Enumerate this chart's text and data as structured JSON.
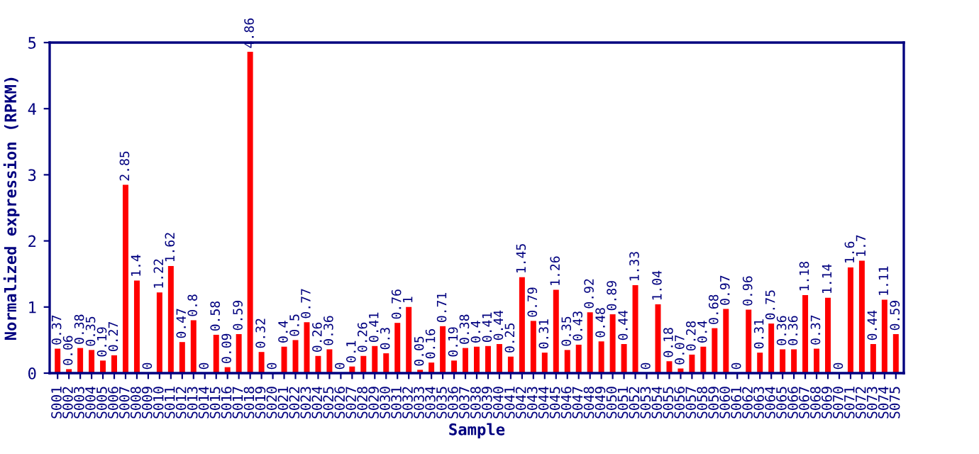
{
  "chart_data": {
    "type": "bar",
    "xlabel": "Sample",
    "ylabel": "Normalized expression (RPKM)",
    "categories": [
      "S001",
      "S002",
      "S003",
      "S004",
      "S005",
      "S006",
      "S007",
      "S008",
      "S009",
      "S010",
      "S011",
      "S012",
      "S013",
      "S014",
      "S015",
      "S016",
      "S017",
      "S018",
      "S019",
      "S020",
      "S021",
      "S022",
      "S023",
      "S024",
      "S025",
      "S026",
      "S027",
      "S028",
      "S029",
      "S030",
      "S031",
      "S032",
      "S033",
      "S034",
      "S035",
      "S036",
      "S037",
      "S038",
      "S039",
      "S040",
      "S041",
      "S042",
      "S043",
      "S044",
      "S045",
      "S046",
      "S047",
      "S048",
      "S049",
      "S050",
      "S051",
      "S052",
      "S053",
      "S054",
      "S055",
      "S056",
      "S057",
      "S058",
      "S059",
      "S060",
      "S061",
      "S062",
      "S063",
      "S064",
      "S065",
      "S066",
      "S067",
      "S068",
      "S069",
      "S070",
      "S071",
      "S072",
      "S073",
      "S074",
      "S075"
    ],
    "values": [
      0.37,
      0.06,
      0.38,
      0.35,
      0.19,
      0.27,
      2.85,
      1.4,
      0,
      1.22,
      1.62,
      0.47,
      0.8,
      0,
      0.58,
      0.09,
      0.59,
      4.86,
      0.32,
      0,
      0.4,
      0.5,
      0.77,
      0.26,
      0.36,
      0,
      0.1,
      0.26,
      0.41,
      0.3,
      0.76,
      1,
      0.05,
      0.16,
      0.71,
      0.19,
      0.38,
      0.4,
      0.41,
      0.44,
      0.25,
      1.45,
      0.79,
      0.31,
      1.26,
      0.35,
      0.43,
      0.92,
      0.48,
      0.89,
      0.44,
      1.33,
      0,
      1.04,
      0.18,
      0.07,
      0.28,
      0.4,
      0.68,
      0.97,
      0,
      0.96,
      0.31,
      0.75,
      0.36,
      0.36,
      1.18,
      0.37,
      1.14,
      0,
      1.6,
      1.7,
      0.44,
      1.11,
      0.59
    ],
    "color": "#ff0000",
    "ylim": [
      0,
      5
    ],
    "yticks": [
      0,
      1,
      2,
      3,
      4,
      5
    ],
    "data_labels": true,
    "grid": false,
    "legend": false
  }
}
